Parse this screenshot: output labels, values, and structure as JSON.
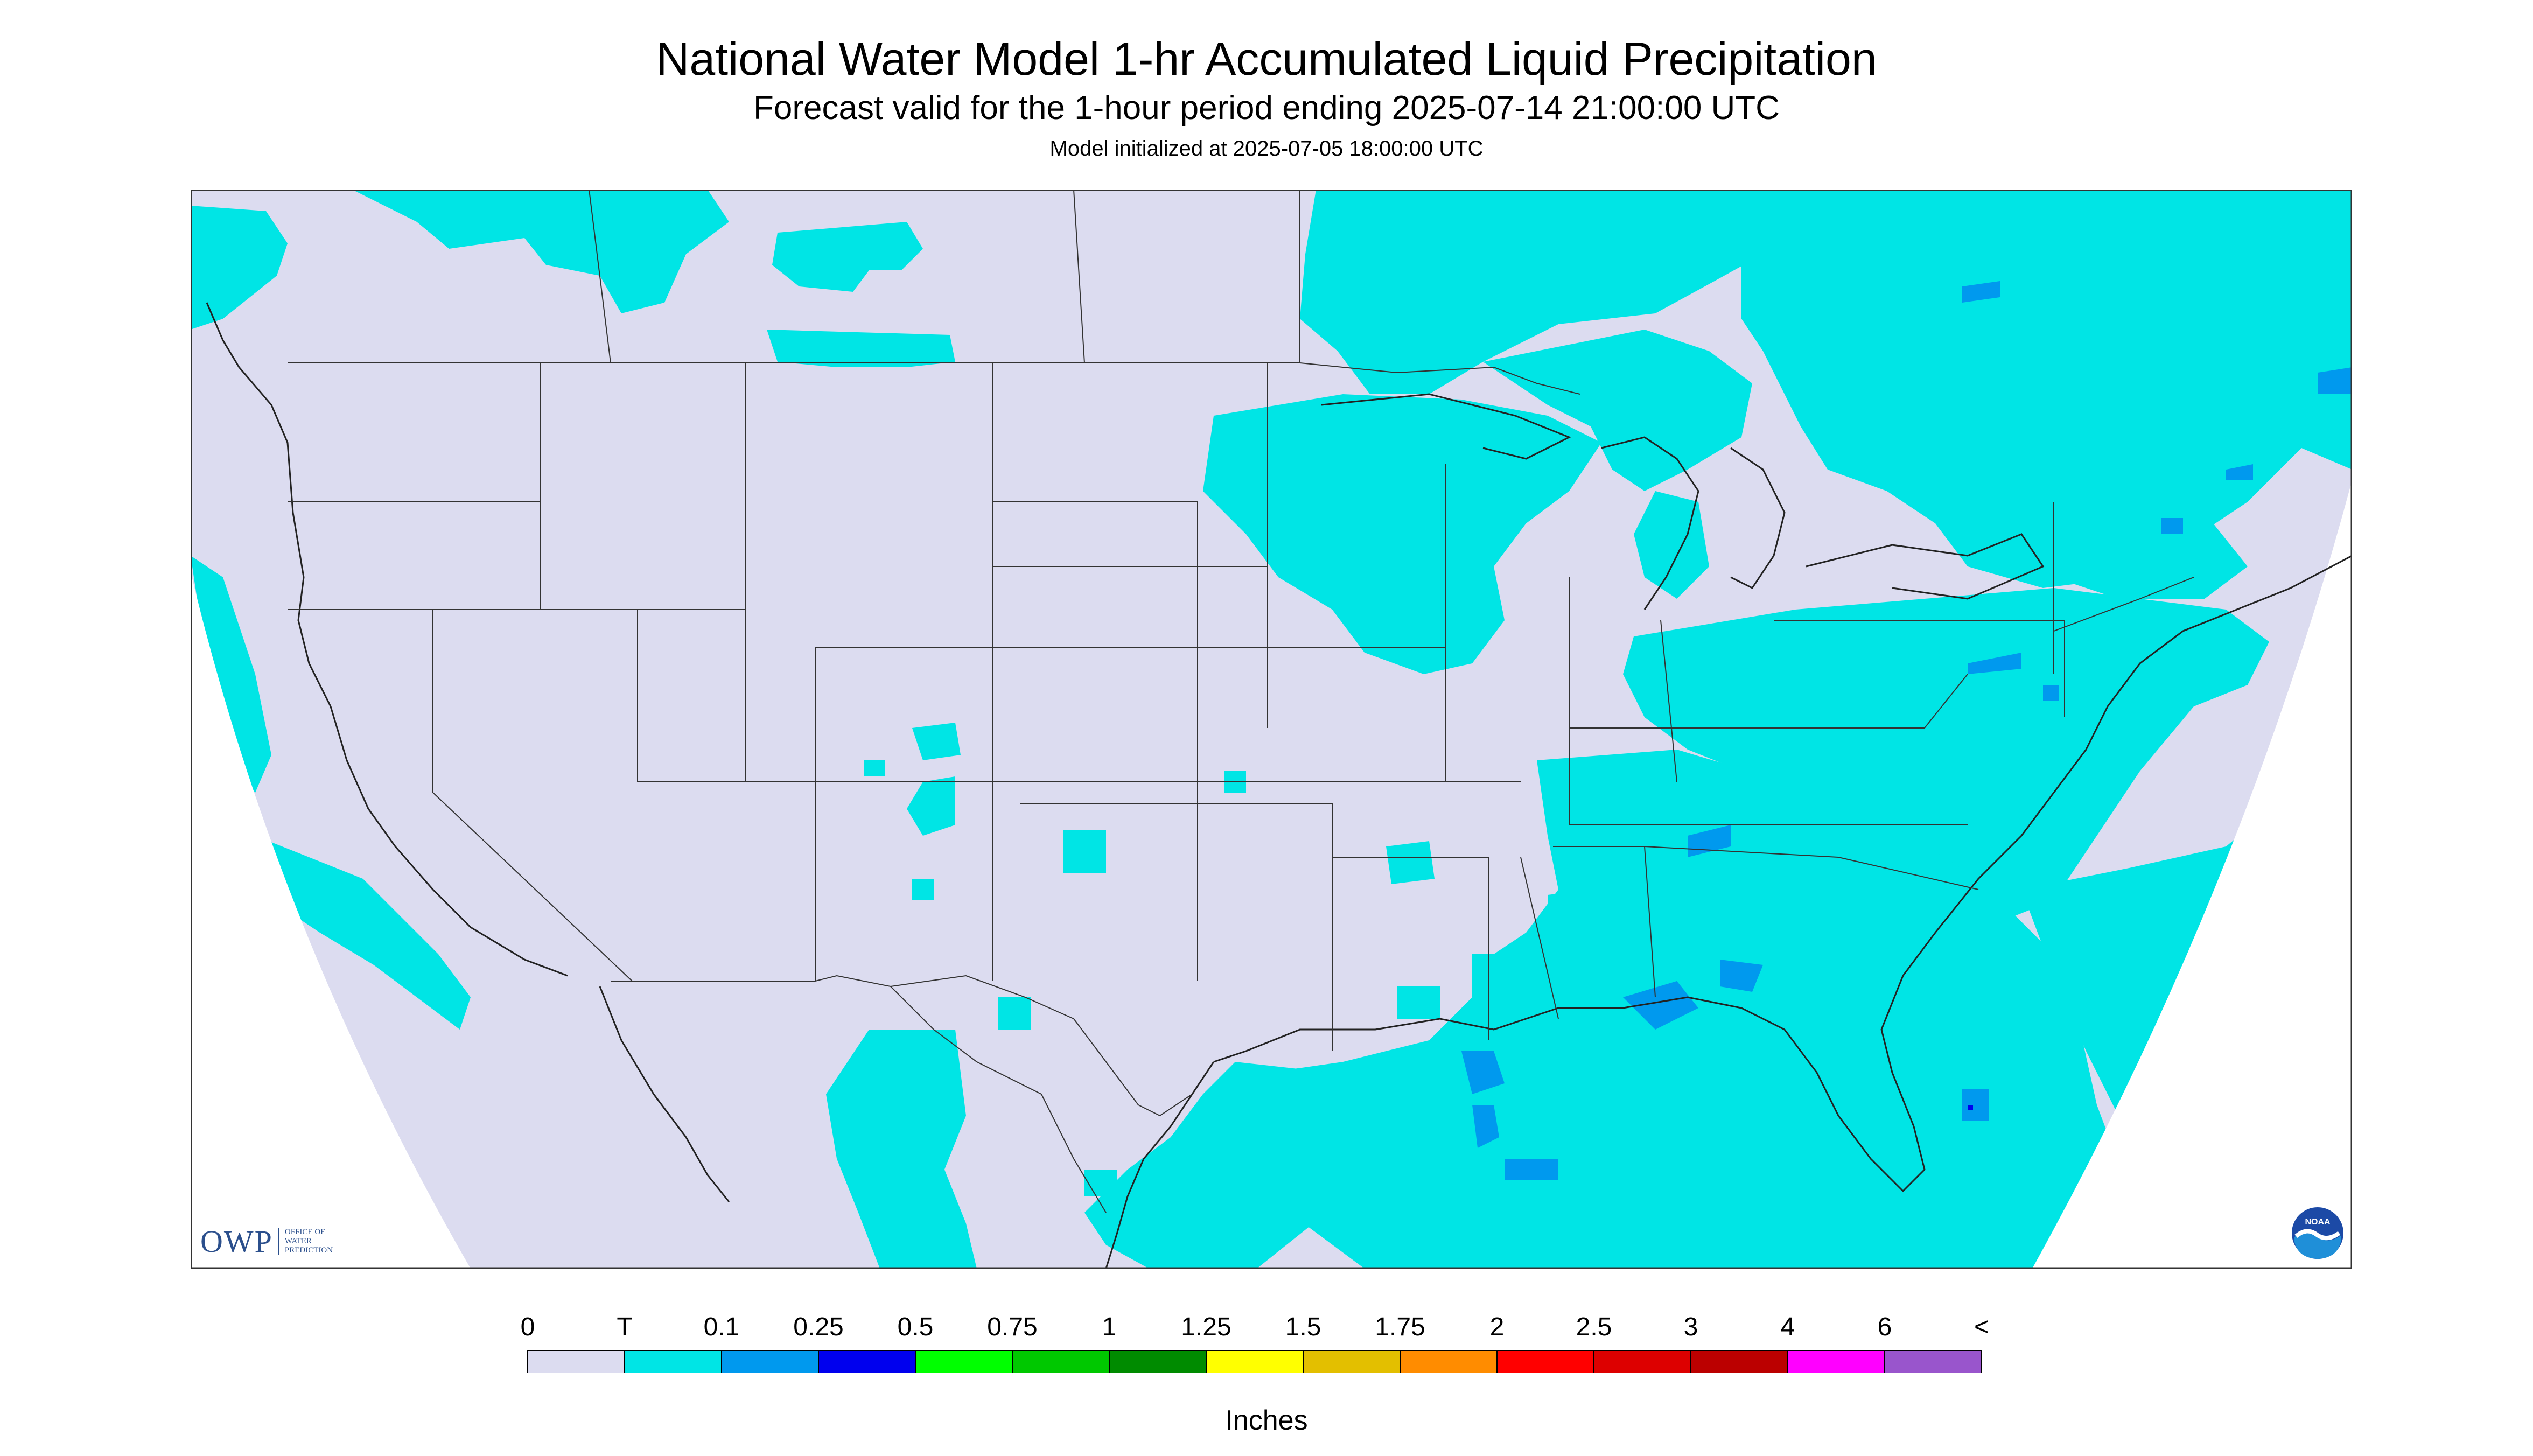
{
  "header": {
    "title": "National Water Model 1-hr Accumulated Liquid Precipitation",
    "subtitle": "Forecast valid for the 1-hour period ending 2025-07-14 21:00:00 UTC",
    "init": "Model initialized at 2025-07-05 18:00:00 UTC"
  },
  "map": {
    "background_color": "#dcdcf0",
    "outside_color": "#ffffff",
    "border_color": "#333333"
  },
  "logos": {
    "owp_mark": "OWP",
    "owp_lines": [
      "OFFICE OF",
      "WATER",
      "PREDICTION"
    ],
    "noaa_text": "NOAA",
    "noaa_icon": "noaa-logo-icon"
  },
  "legend": {
    "labels": [
      "0",
      "T",
      "0.1",
      "0.25",
      "0.5",
      "0.75",
      "1",
      "1.25",
      "1.5",
      "1.75",
      "2",
      "2.5",
      "3",
      "4",
      "6",
      "<"
    ],
    "colors": [
      "#dcdcf0",
      "#00e5e5",
      "#0099ee",
      "#0000ee",
      "#00ff00",
      "#00c800",
      "#008b00",
      "#ffff00",
      "#e3bf00",
      "#ff8c00",
      "#ff0000",
      "#dd0000",
      "#bb0000",
      "#ff00ff",
      "#9955cc"
    ],
    "units": "Inches"
  }
}
